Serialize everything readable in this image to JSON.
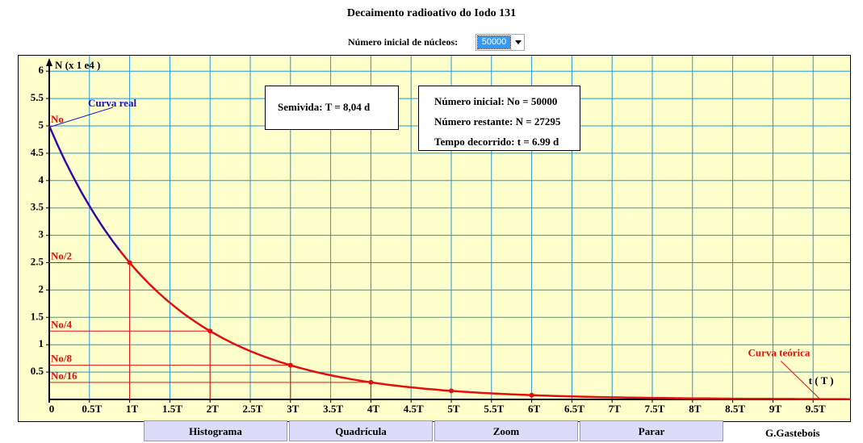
{
  "title": "Decaimento radioativo do Iodo 131",
  "controls": {
    "count_label": "Número inicial de núcleos:",
    "count_value": "50000"
  },
  "halflife_box": {
    "text": "Semivida: T = 8,04 d"
  },
  "stats_box": {
    "initial": "Número inicial: No = 50000",
    "remaining": "Número restante: N = 27295",
    "elapsed": "Tempo decorrido: t = 6.99 d"
  },
  "buttons": {
    "histogram": "Histograma",
    "grid": "Quadrícula",
    "zoom": "Zoom",
    "stop": "Parar"
  },
  "author": "G.Gastebois",
  "colors": {
    "background": "#ffffff",
    "plot_background": "#ffffcc",
    "grid": "#2196d9",
    "real_curve": "#1010cc",
    "theoretical_curve": "#e01010",
    "button": "#dcdcf8"
  },
  "chart_data": {
    "type": "line",
    "ylabel": "N (x 1 e4 )",
    "xlabel": "t ( T )",
    "xlim": [
      0,
      10
    ],
    "ylim": [
      0,
      6
    ],
    "x_ticks": [
      "0",
      "0.5T",
      "1T",
      "1.5T",
      "2T",
      "2.5T",
      "3T",
      "3.5T",
      "4T",
      "4.5T",
      "5T",
      "5.5T",
      "6T",
      "6.5T",
      "7T",
      "7.5T",
      "8T",
      "8.5T",
      "9T",
      "9.5T"
    ],
    "y_ticks": [
      "0.5",
      "1",
      "1.5",
      "2",
      "2.5",
      "3",
      "3.5",
      "4",
      "4.5",
      "5",
      "5.5",
      "6"
    ],
    "annotations": [
      {
        "text": "No",
        "y": 5
      },
      {
        "text": "No/2",
        "y": 2.5
      },
      {
        "text": "No/4",
        "y": 1.25
      },
      {
        "text": "No/8",
        "y": 0.625
      },
      {
        "text": "No/16",
        "y": 0.3125
      }
    ],
    "series": [
      {
        "name": "Curva real",
        "color": "#1010cc",
        "x": [
          0,
          0.1,
          0.2,
          0.3,
          0.4,
          0.5,
          0.6,
          0.7,
          0.8,
          0.87
        ],
        "y": [
          5,
          4.66,
          4.35,
          4.06,
          3.79,
          3.54,
          3.3,
          3.08,
          2.87,
          2.73
        ]
      },
      {
        "name": "Curva teórica",
        "color": "#e01010",
        "x": [
          0,
          1,
          2,
          3,
          4,
          5,
          6,
          7,
          8,
          9,
          10
        ],
        "y": [
          5,
          2.5,
          1.25,
          0.625,
          0.3125,
          0.156,
          0.078,
          0.039,
          0.0195,
          0.0098,
          0.0049
        ],
        "markers_at": [
          1,
          2,
          3,
          4,
          5,
          6
        ]
      }
    ],
    "grid": true
  }
}
